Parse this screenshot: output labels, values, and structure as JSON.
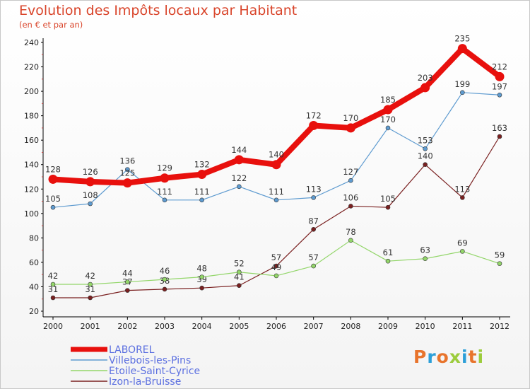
{
  "title": "Evolution des Impôts locaux par Habitant",
  "subtitle": "(en € et par an)",
  "logo": {
    "text": "Proxiti",
    "colors": [
      "#e8742c",
      "#2c9fd8",
      "#e8742c",
      "#9ccc3c",
      "#2c9fd8",
      "#e8742c",
      "#9ccc3c"
    ]
  },
  "chart_data": {
    "type": "line",
    "x": [
      "2000",
      "2001",
      "2002",
      "2003",
      "2004",
      "2005",
      "2006",
      "2007",
      "2008",
      "2009",
      "2010",
      "2011",
      "2012"
    ],
    "ylim": [
      20,
      240
    ],
    "yticks": [
      20,
      40,
      60,
      80,
      100,
      120,
      140,
      160,
      180,
      200,
      220,
      240
    ],
    "grid": false,
    "legend_position": "bottom-left",
    "series": [
      {
        "name": "LABOREL",
        "color": "#e8100d",
        "values": [
          128,
          126,
          125,
          129,
          132,
          144,
          140,
          172,
          170,
          185,
          203,
          235,
          212
        ]
      },
      {
        "name": "Villebois-les-Pins",
        "color": "#5e9bd0",
        "values": [
          105,
          108,
          136,
          111,
          111,
          122,
          111,
          113,
          127,
          170,
          153,
          199,
          197
        ]
      },
      {
        "name": "Etoile-Saint-Cyrice",
        "color": "#93d66a",
        "values": [
          42,
          42,
          44,
          46,
          48,
          52,
          49,
          57,
          78,
          61,
          63,
          69,
          59
        ]
      },
      {
        "name": "Izon-la-Bruisse",
        "color": "#7a2020",
        "values": [
          31,
          31,
          37,
          38,
          39,
          41,
          57,
          87,
          106,
          105,
          140,
          113,
          163
        ]
      }
    ]
  }
}
